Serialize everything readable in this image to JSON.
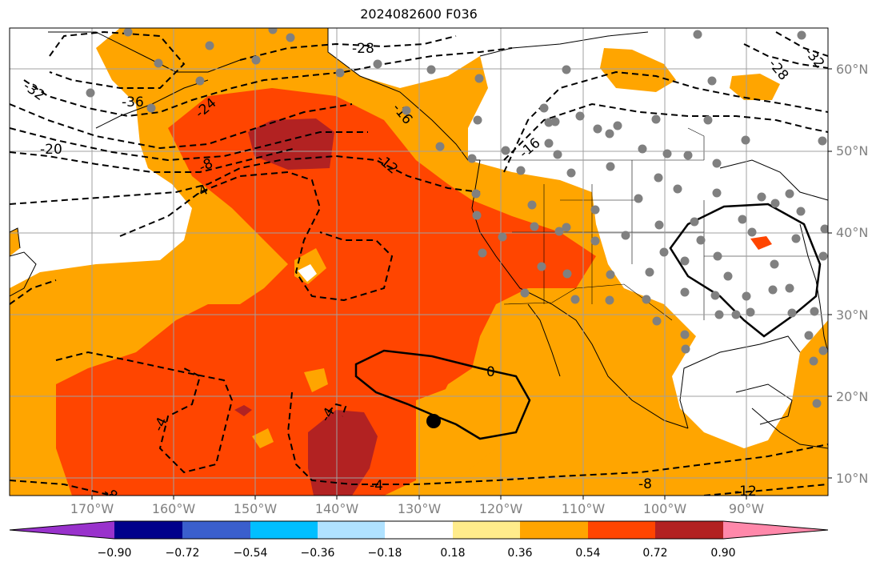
{
  "title": "2024082600 F036",
  "lat_labels": [
    {
      "text": "60°N"
    },
    {
      "text": "50°N"
    },
    {
      "text": "40°N"
    },
    {
      "text": "30°N"
    },
    {
      "text": "20°N"
    },
    {
      "text": "10°N"
    }
  ],
  "lon_labels": [
    {
      "text": "170°W"
    },
    {
      "text": "160°W"
    },
    {
      "text": "150°W"
    },
    {
      "text": "140°W"
    },
    {
      "text": "130°W"
    },
    {
      "text": "120°W"
    },
    {
      "text": "110°W"
    },
    {
      "text": "100°W"
    },
    {
      "text": "90°W"
    }
  ],
  "contour_labels": [
    "-32",
    "-36",
    "-20",
    "-28",
    "-24",
    "-16",
    "-12",
    "-8",
    "-4",
    "0",
    "-4",
    "-8",
    "-12",
    "-16",
    "-4",
    "-28",
    "-32",
    "-8",
    "-4"
  ],
  "colorbar": {
    "colors": [
      "#9932cc",
      "#00008b",
      "#3a5fcd",
      "#00bfff",
      "#b0e2ff",
      "#ffffff",
      "#ffec8b",
      "#ffa500",
      "#ff4500",
      "#b22222",
      "#ff88aa"
    ],
    "tick_labels": [
      "−0.90",
      "−0.72",
      "−0.54",
      "−0.36",
      "−0.18",
      "0.18",
      "0.36",
      "0.54",
      "0.72",
      "0.90"
    ]
  },
  "colors": {
    "fill_036_054": "#ffa500",
    "fill_054_072": "#ff4500",
    "fill_072_090": "#b22222",
    "station_dot": "#808080",
    "grid": "#a0a0a0"
  }
}
